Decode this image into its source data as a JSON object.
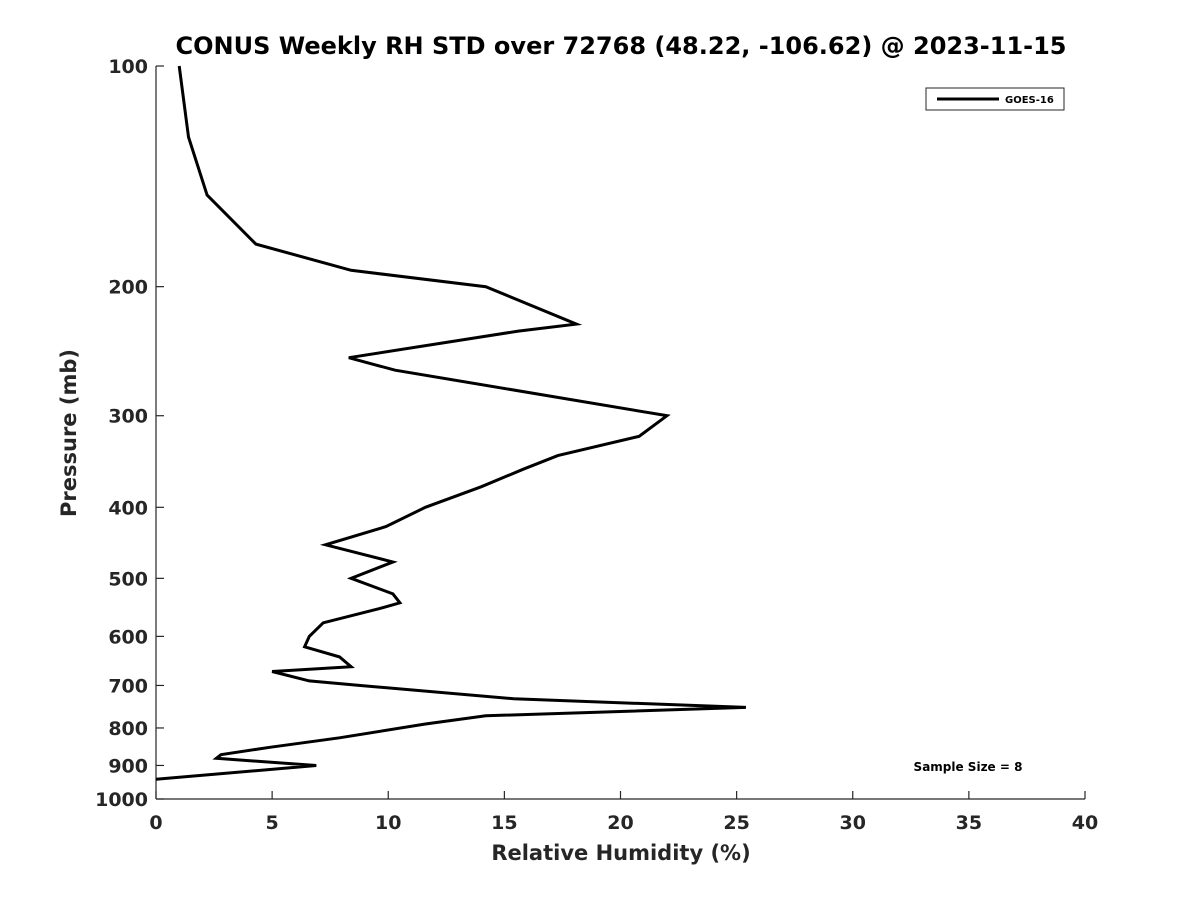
{
  "chart_data": {
    "type": "line",
    "title": "CONUS Weekly RH STD over 72768 (48.22, -106.62) @ 2023-11-15",
    "xlabel": "Relative Humidity (%)",
    "ylabel": "Pressure (mb)",
    "xlim": [
      0,
      40
    ],
    "ylim": [
      100,
      1000
    ],
    "y_scale": "log",
    "y_reversed": true,
    "x_ticks": [
      0,
      5,
      10,
      15,
      20,
      25,
      30,
      35,
      40
    ],
    "y_ticks": [
      100,
      200,
      300,
      400,
      500,
      600,
      700,
      800,
      900,
      1000
    ],
    "grid": false,
    "legend_position": "top-right",
    "annotation": "Sample Size = 8",
    "series": [
      {
        "name": "GOES-16",
        "color": "#000000",
        "points": [
          [
            1.0,
            100
          ],
          [
            1.4,
            125
          ],
          [
            2.2,
            150
          ],
          [
            4.3,
            175
          ],
          [
            8.4,
            190
          ],
          [
            14.2,
            200
          ],
          [
            18.1,
            225
          ],
          [
            15.6,
            230
          ],
          [
            8.3,
            250
          ],
          [
            10.3,
            260
          ],
          [
            22.0,
            300
          ],
          [
            20.8,
            320
          ],
          [
            17.3,
            340
          ],
          [
            15.8,
            355
          ],
          [
            14.0,
            375
          ],
          [
            11.6,
            400
          ],
          [
            9.9,
            425
          ],
          [
            7.3,
            450
          ],
          [
            10.2,
            475
          ],
          [
            8.4,
            500
          ],
          [
            10.2,
            525
          ],
          [
            10.5,
            540
          ],
          [
            9.6,
            550
          ],
          [
            7.2,
            575
          ],
          [
            6.6,
            600
          ],
          [
            6.4,
            620
          ],
          [
            7.9,
            640
          ],
          [
            8.4,
            660
          ],
          [
            5.0,
            670
          ],
          [
            6.6,
            690
          ],
          [
            8.8,
            700
          ],
          [
            15.4,
            730
          ],
          [
            25.4,
            750
          ],
          [
            14.2,
            770
          ],
          [
            11.6,
            790
          ],
          [
            7.9,
            825
          ],
          [
            4.9,
            850
          ],
          [
            2.8,
            870
          ],
          [
            2.6,
            880
          ],
          [
            6.9,
            900
          ],
          [
            0.0,
            940
          ]
        ]
      }
    ]
  }
}
